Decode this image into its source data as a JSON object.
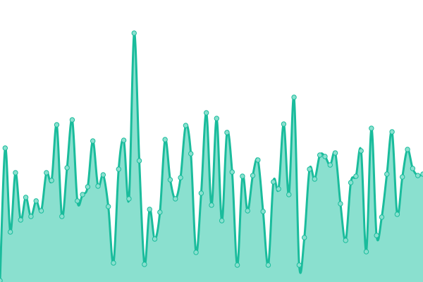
{
  "chart_data": {
    "type": "area",
    "title": "",
    "xlabel": "",
    "ylabel": "",
    "grid": false,
    "legend": "none",
    "ylim": [
      0,
      400
    ],
    "line_color": "#1abc9c",
    "fill_color": "#8ae0cf",
    "marker_fill": "#8ae0cf",
    "values": [
      2,
      190,
      71,
      155,
      88,
      120,
      93,
      115,
      101,
      155,
      144,
      223,
      93,
      162,
      230,
      115,
      124,
      135,
      200,
      136,
      152,
      107,
      27,
      160,
      201,
      118,
      353,
      172,
      25,
      103,
      61,
      99,
      202,
      145,
      118,
      148,
      222,
      182,
      42,
      126,
      240,
      109,
      232,
      87,
      212,
      156,
      24,
      150,
      101,
      151,
      173,
      100,
      24,
      142,
      132,
      224,
      124,
      262,
      24,
      63,
      160,
      146,
      180,
      178,
      166,
      183,
      111,
      59,
      141,
      150,
      186,
      43,
      218,
      66,
      92,
      153,
      213,
      96,
      149,
      188,
      161,
      151,
      153
    ]
  }
}
